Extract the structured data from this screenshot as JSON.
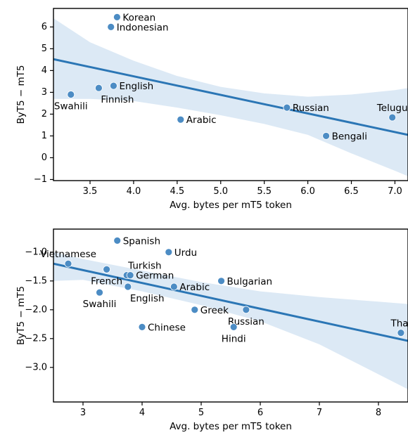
{
  "chart_data": [
    {
      "type": "scatter",
      "xlabel": "Avg. bytes per mT5 token",
      "ylabel": "ByT5 − mT5",
      "xlim": [
        3.08,
        7.15
      ],
      "ylim": [
        -1.05,
        6.85
      ],
      "xticks": [
        3.5,
        4.0,
        4.5,
        5.0,
        5.5,
        6.0,
        6.5,
        7.0
      ],
      "xtick_labels": [
        "3.5",
        "4.0",
        "4.5",
        "5.0",
        "5.5",
        "6.0",
        "6.5",
        "7.0"
      ],
      "yticks": [
        -1,
        0,
        1,
        2,
        3,
        4,
        5,
        6
      ],
      "ytick_labels": [
        "−1",
        "0",
        "1",
        "2",
        "3",
        "4",
        "5",
        "6"
      ],
      "grid": false,
      "marker_color": "#4c8cc4",
      "line_color": "#2b76b5",
      "band_color": "#dce9f5",
      "points": [
        {
          "label": "Korean",
          "x": 3.81,
          "y": 6.45,
          "pos": "right"
        },
        {
          "label": "Indonesian",
          "x": 3.74,
          "y": 6.0,
          "pos": "right"
        },
        {
          "label": "English",
          "x": 3.77,
          "y": 3.3,
          "pos": "right"
        },
        {
          "label": "Finnish",
          "x": 3.6,
          "y": 3.2,
          "pos": "below-right"
        },
        {
          "label": "Swahili",
          "x": 3.28,
          "y": 2.9,
          "pos": "below"
        },
        {
          "label": "Arabic",
          "x": 4.54,
          "y": 1.75,
          "pos": "right"
        },
        {
          "label": "Russian",
          "x": 5.76,
          "y": 2.3,
          "pos": "right"
        },
        {
          "label": "Bengali",
          "x": 6.21,
          "y": 1.0,
          "pos": "right"
        },
        {
          "label": "Telugu",
          "x": 6.97,
          "y": 1.85,
          "pos": "above"
        }
      ],
      "regression": {
        "x": [
          3.08,
          7.15
        ],
        "y": [
          4.52,
          1.05
        ]
      },
      "ci_band": {
        "x": [
          3.08,
          3.5,
          4.0,
          4.5,
          5.0,
          5.5,
          6.0,
          6.5,
          7.0,
          7.15
        ],
        "upper": [
          6.4,
          5.3,
          4.45,
          3.75,
          3.25,
          2.95,
          2.8,
          2.9,
          3.1,
          3.2
        ],
        "lower": [
          2.7,
          2.7,
          2.6,
          2.3,
          1.95,
          1.55,
          1.05,
          0.2,
          -0.6,
          -0.85
        ]
      }
    },
    {
      "type": "scatter",
      "xlabel": "Avg. bytes per mT5 token",
      "ylabel": "ByT5 − mT5",
      "xlim": [
        2.5,
        8.5
      ],
      "ylim": [
        -3.6,
        -0.6
      ],
      "xticks": [
        3,
        4,
        5,
        6,
        7,
        8
      ],
      "xtick_labels": [
        "3",
        "4",
        "5",
        "6",
        "7",
        "8"
      ],
      "yticks": [
        -1.0,
        -1.5,
        -2.0,
        -2.5,
        -3.0
      ],
      "ytick_labels": [
        "−1.0",
        "−1.5",
        "−2.0",
        "−2.5",
        "−3.0"
      ],
      "grid": false,
      "marker_color": "#4c8cc4",
      "line_color": "#2b76b5",
      "band_color": "#dce9f5",
      "points": [
        {
          "label": "Spanish",
          "x": 3.58,
          "y": -0.8,
          "pos": "right"
        },
        {
          "label": "Urdu",
          "x": 4.45,
          "y": -1.0,
          "pos": "right"
        },
        {
          "label": "Vietnamese",
          "x": 2.75,
          "y": -1.2,
          "pos": "above"
        },
        {
          "label": "French",
          "x": 3.4,
          "y": -1.3,
          "pos": "below"
        },
        {
          "label": "Turkish",
          "x": 3.74,
          "y": -1.4,
          "pos": "above-right"
        },
        {
          "label": "German",
          "x": 3.8,
          "y": -1.4,
          "pos": "right"
        },
        {
          "label": "Swahili",
          "x": 3.28,
          "y": -1.7,
          "pos": "below"
        },
        {
          "label": "English",
          "x": 3.76,
          "y": -1.6,
          "pos": "below-right"
        },
        {
          "label": "Arabic",
          "x": 4.54,
          "y": -1.6,
          "pos": "right"
        },
        {
          "label": "Bulgarian",
          "x": 5.34,
          "y": -1.5,
          "pos": "right"
        },
        {
          "label": "Greek",
          "x": 4.89,
          "y": -2.0,
          "pos": "right"
        },
        {
          "label": "Russian",
          "x": 5.76,
          "y": -2.0,
          "pos": "below"
        },
        {
          "label": "Chinese",
          "x": 4.0,
          "y": -2.3,
          "pos": "right"
        },
        {
          "label": "Hindi",
          "x": 5.55,
          "y": -2.3,
          "pos": "below"
        },
        {
          "label": "Thai",
          "x": 8.38,
          "y": -2.4,
          "pos": "above"
        }
      ],
      "regression": {
        "x": [
          2.5,
          8.5
        ],
        "y": [
          -1.2,
          -2.54
        ]
      },
      "ci_band": {
        "x": [
          2.5,
          3.0,
          4.0,
          5.0,
          6.0,
          7.0,
          8.0,
          8.5
        ],
        "upper": [
          -1.0,
          -1.12,
          -1.32,
          -1.52,
          -1.68,
          -1.78,
          -1.86,
          -1.9
        ],
        "lower": [
          -1.5,
          -1.48,
          -1.68,
          -1.92,
          -2.2,
          -2.6,
          -3.12,
          -3.38
        ]
      }
    }
  ]
}
